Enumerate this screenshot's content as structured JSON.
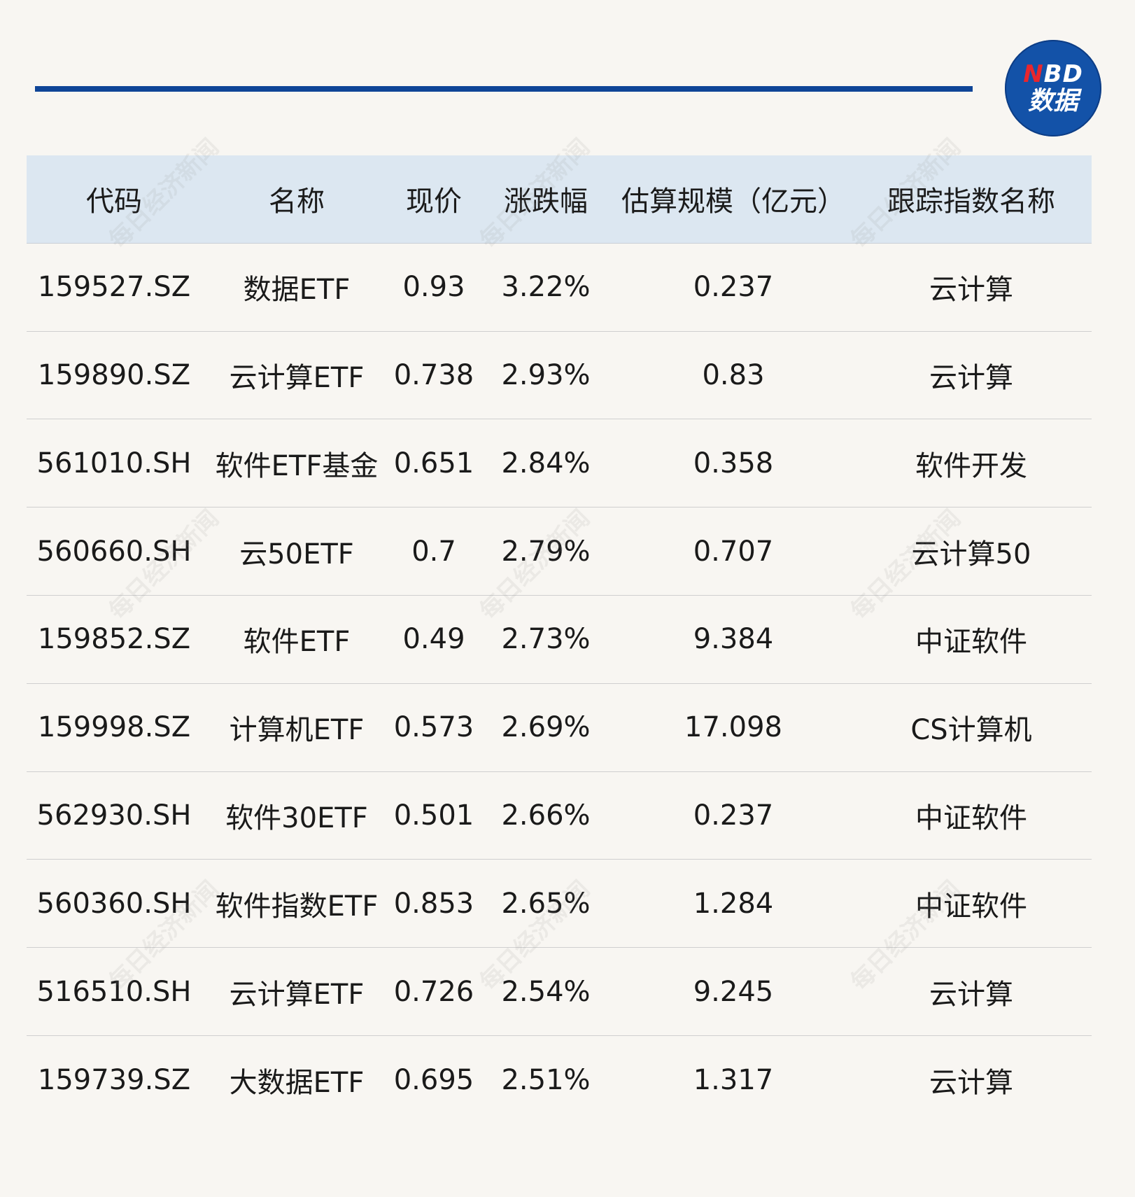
{
  "logo": {
    "top_n": "N",
    "top_rest": "BD",
    "bottom": "数据"
  },
  "watermark_text": "每日经济新闻",
  "table": {
    "headers": {
      "code": "代码",
      "name": "名称",
      "price": "现价",
      "change": "涨跌幅",
      "size": "估算规模（亿元）",
      "index": "跟踪指数名称"
    },
    "rows": [
      {
        "code": "159527.SZ",
        "name": "数据ETF",
        "price": "0.93",
        "change": "3.22%",
        "size": "0.237",
        "index": "云计算"
      },
      {
        "code": "159890.SZ",
        "name": "云计算ETF",
        "price": "0.738",
        "change": "2.93%",
        "size": "0.83",
        "index": "云计算"
      },
      {
        "code": "561010.SH",
        "name": "软件ETF基金",
        "price": "0.651",
        "change": "2.84%",
        "size": "0.358",
        "index": "软件开发"
      },
      {
        "code": "560660.SH",
        "name": "云50ETF",
        "price": "0.7",
        "change": "2.79%",
        "size": "0.707",
        "index": "云计算50"
      },
      {
        "code": "159852.SZ",
        "name": "软件ETF",
        "price": "0.49",
        "change": "2.73%",
        "size": "9.384",
        "index": "中证软件"
      },
      {
        "code": "159998.SZ",
        "name": "计算机ETF",
        "price": "0.573",
        "change": "2.69%",
        "size": "17.098",
        "index": "CS计算机"
      },
      {
        "code": "562930.SH",
        "name": "软件30ETF",
        "price": "0.501",
        "change": "2.66%",
        "size": "0.237",
        "index": "中证软件"
      },
      {
        "code": "560360.SH",
        "name": "软件指数ETF",
        "price": "0.853",
        "change": "2.65%",
        "size": "1.284",
        "index": "中证软件"
      },
      {
        "code": "516510.SH",
        "name": "云计算ETF",
        "price": "0.726",
        "change": "2.54%",
        "size": "9.245",
        "index": "云计算"
      },
      {
        "code": "159739.SZ",
        "name": "大数据ETF",
        "price": "0.695",
        "change": "2.51%",
        "size": "1.317",
        "index": "云计算"
      }
    ]
  }
}
